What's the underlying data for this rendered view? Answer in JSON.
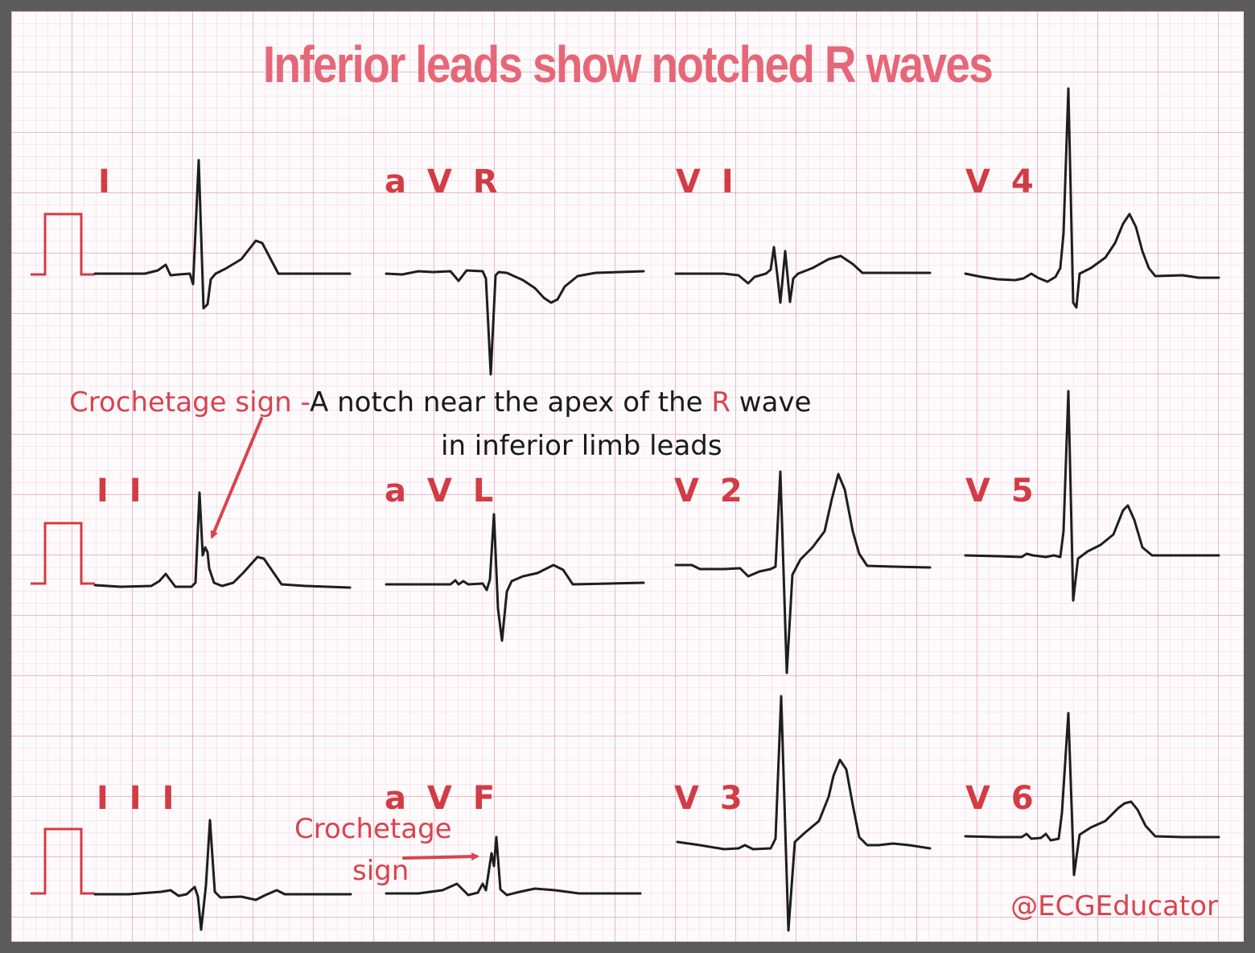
{
  "title": "Inferior leads show notched R waves",
  "leads": {
    "I": "I",
    "II": "I I",
    "III": "I I I",
    "aVR": "a V R",
    "aVL": "a V L",
    "aVF": "a V F",
    "V1": "V I",
    "V2": "V 2",
    "V3": "V 3",
    "V4": "V 4",
    "V5": "V 5",
    "V6": "V 6"
  },
  "annotation_main": {
    "term": "Crochetage sign -",
    "text_before_r": "A notch near the apex of the ",
    "r": "R",
    "text_after_r": " wave",
    "line2": "in inferior limb leads"
  },
  "annotation_avf": {
    "line1": "Crochetage",
    "line2": "sign"
  },
  "credit": "@ECGEducator",
  "colors": {
    "title": "#e66778",
    "lead_label": "#d23c45",
    "annotation": "#d9434f",
    "trace": "#1e1e1e",
    "calibration": "#d23c45",
    "grid": "#d66e8c",
    "border": "#5b5b5b"
  }
}
